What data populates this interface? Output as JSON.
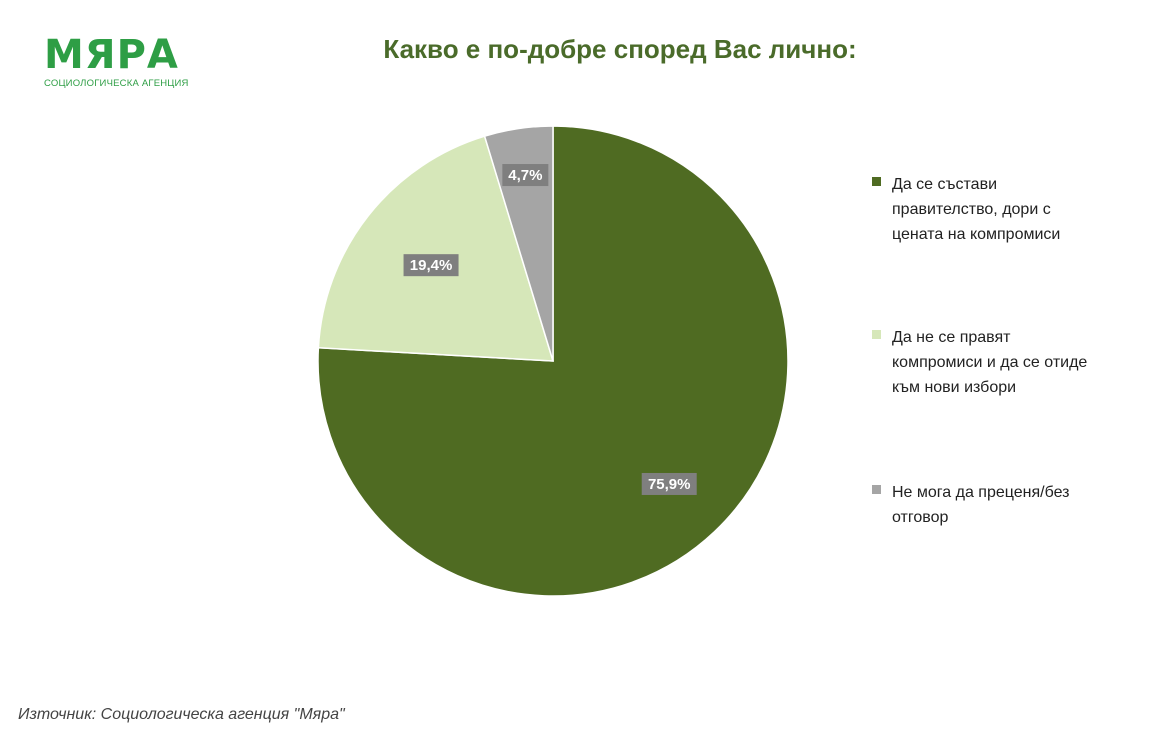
{
  "logo": {
    "name": "МЯРА",
    "subtitle": "СОЦИОЛОГИЧЕСКА АГЕНЦИЯ"
  },
  "chart_data": {
    "type": "pie",
    "title": "Какво е по-добре според Вас лично:",
    "slices": [
      {
        "label": "Да се състави правителство, дори с цената на компромиси",
        "value": 75.9,
        "display": "75,9%",
        "color": "#4f6b22"
      },
      {
        "label": "Да не се правят компромиси и да се отиде към нови избори",
        "value": 19.4,
        "display": "19,4%",
        "color": "#d6e7b9"
      },
      {
        "label": "Не мога да преценя/без отговор",
        "value": 4.7,
        "display": "4,7%",
        "color": "#a5a5a5"
      }
    ],
    "legend_position": "right"
  },
  "legend": {
    "items": [
      {
        "text": "Да се състави\nправителство, дори с\nцената на компромиси"
      },
      {
        "text": "Да не се правят\nкомпромиси и да се отиде\nкъм нови избори"
      },
      {
        "text": "Не мога да преценя/без\nотговор"
      }
    ]
  },
  "source": "Източник: Социологическа агенция \"Мяра\""
}
